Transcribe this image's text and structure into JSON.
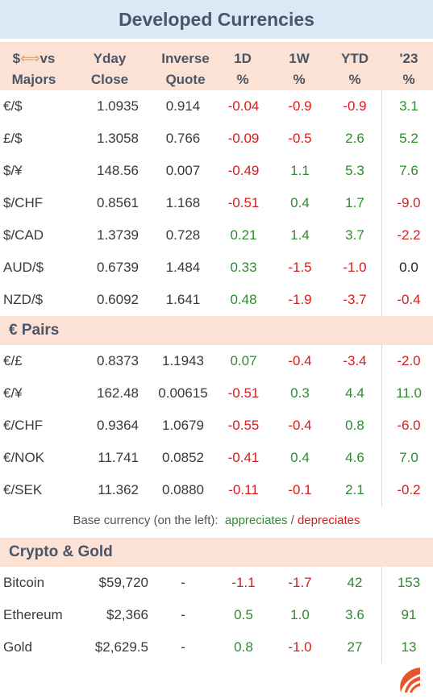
{
  "title": "Developed Currencies",
  "headers": {
    "c0_prefix": "$",
    "c0_arrow": "⟺",
    "c0_suffix": "vs\nMajors",
    "yday_close": "Yday\nClose",
    "inverse_quote": "Inverse\nQuote",
    "d1": "1D\n%",
    "w1": "1W\n%",
    "ytd": "YTD\n%",
    "y23": "'23\n%"
  },
  "usd_pairs": [
    {
      "pair": "€/$",
      "close": "1.0935",
      "inverse": "0.914",
      "d1": "-0.04",
      "w1": "-0.9",
      "ytd": "-0.9",
      "y23": "3.1"
    },
    {
      "pair": "£/$",
      "close": "1.3058",
      "inverse": "0.766",
      "d1": "-0.09",
      "w1": "-0.5",
      "ytd": "2.6",
      "y23": "5.2"
    },
    {
      "pair": "$/¥",
      "close": "148.56",
      "inverse": "0.007",
      "d1": "-0.49",
      "w1": "1.1",
      "ytd": "5.3",
      "y23": "7.6"
    },
    {
      "pair": "$/CHF",
      "close": "0.8561",
      "inverse": "1.168",
      "d1": "-0.51",
      "w1": "0.4",
      "ytd": "1.7",
      "y23": "-9.0"
    },
    {
      "pair": "$/CAD",
      "close": "1.3739",
      "inverse": "0.728",
      "d1": "0.21",
      "w1": "1.4",
      "ytd": "3.7",
      "y23": "-2.2"
    },
    {
      "pair": "AUD/$",
      "close": "0.6739",
      "inverse": "1.484",
      "d1": "0.33",
      "w1": "-1.5",
      "ytd": "-1.0",
      "y23": "0.0"
    },
    {
      "pair": "NZD/$",
      "close": "0.6092",
      "inverse": "1.641",
      "d1": "0.48",
      "w1": "-1.9",
      "ytd": "-3.7",
      "y23": "-0.4"
    }
  ],
  "euro_section": "€ Pairs",
  "euro_pairs": [
    {
      "pair": "€/£",
      "close": "0.8373",
      "inverse": "1.1943",
      "d1": "0.07",
      "w1": "-0.4",
      "ytd": "-3.4",
      "y23": "-2.0"
    },
    {
      "pair": "€/¥",
      "close": "162.48",
      "inverse": "0.00615",
      "d1": "-0.51",
      "w1": "0.3",
      "ytd": "4.4",
      "y23": "11.0"
    },
    {
      "pair": "€/CHF",
      "close": "0.9364",
      "inverse": "1.0679",
      "d1": "-0.55",
      "w1": "-0.4",
      "ytd": "0.8",
      "y23": "-6.0"
    },
    {
      "pair": "€/NOK",
      "close": "11.741",
      "inverse": "0.0852",
      "d1": "-0.41",
      "w1": "0.4",
      "ytd": "4.6",
      "y23": "7.0"
    },
    {
      "pair": "€/SEK",
      "close": "11.362",
      "inverse": "0.0880",
      "d1": "-0.11",
      "w1": "-0.1",
      "ytd": "2.1",
      "y23": "-0.2"
    }
  ],
  "legend": {
    "prefix": "Base currency (on the left):",
    "appreciates": "appreciates",
    "slash": "/",
    "depreciates": "depreciates"
  },
  "crypto_section": "Crypto & Gold",
  "crypto": [
    {
      "pair": "Bitcoin",
      "close": "$59,720",
      "inverse": "-",
      "d1": "-1.1",
      "w1": "-1.7",
      "ytd": "42",
      "y23": "153"
    },
    {
      "pair": "Ethereum",
      "close": "$2,366",
      "inverse": "-",
      "d1": "0.5",
      "w1": "1.0",
      "ytd": "3.6",
      "y23": "91"
    },
    {
      "pair": "Gold",
      "close": "$2,629.5",
      "inverse": "-",
      "d1": "0.8",
      "w1": "-1.0",
      "ytd": "27",
      "y23": "13"
    }
  ],
  "colors": {
    "positive": "#2e8b2e",
    "negative": "#d21e1e",
    "neutral": "#222222",
    "title_bg": "#dbe9f6",
    "section_bg": "#fbe2d5",
    "logo": "#e8532b"
  },
  "icons": {
    "logo": "flame-logo-icon"
  }
}
